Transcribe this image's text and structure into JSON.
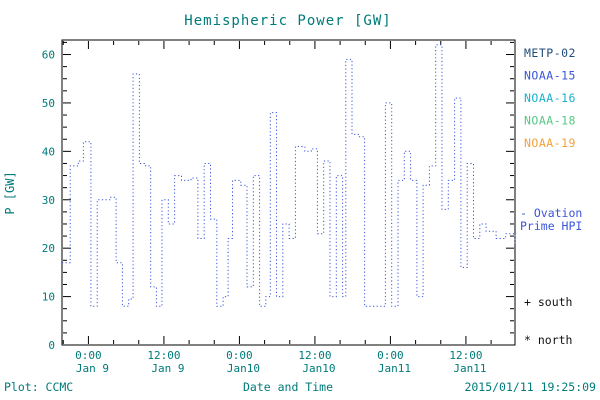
{
  "chart_data": {
    "type": "line",
    "subtype": "dotted-step",
    "title": "Hemispheric Power [GW]",
    "xlabel": "Date and Time",
    "ylabel": "P [GW]",
    "xlim_hours": [
      0,
      72
    ],
    "ylim": [
      0,
      63
    ],
    "y_ticks": [
      0,
      10,
      20,
      30,
      40,
      50,
      60
    ],
    "x_ticks": [
      {
        "t": 4.2,
        "time": "0:00",
        "date": "Jan 9"
      },
      {
        "t": 16.2,
        "time": "12:00",
        "date": "Jan 9"
      },
      {
        "t": 28.2,
        "time": "0:00",
        "date": "Jan10"
      },
      {
        "t": 40.2,
        "time": "12:00",
        "date": "Jan10"
      },
      {
        "t": 52.2,
        "time": "0:00",
        "date": "Jan11"
      },
      {
        "t": 64.2,
        "time": "12:00",
        "date": "Jan11"
      }
    ],
    "grid": false,
    "legend_position": "right",
    "legend": [
      {
        "label": "METP-02",
        "color": "#1f4e79"
      },
      {
        "label": "NOAA-15",
        "color": "#3a55d9"
      },
      {
        "label": "NOAA-16",
        "color": "#18b3cc"
      },
      {
        "label": "NOAA-18",
        "color": "#57c785"
      },
      {
        "label": "NOAA-19",
        "color": "#f2a13c"
      }
    ],
    "series": [
      {
        "name": "Ovation Prime HPI",
        "color": "#3a55d9",
        "style": "dotted-step",
        "points": [
          [
            0,
            17
          ],
          [
            1.3,
            37
          ],
          [
            2.6,
            38
          ],
          [
            3.4,
            42
          ],
          [
            4.6,
            8
          ],
          [
            5.6,
            30
          ],
          [
            7.6,
            30.5
          ],
          [
            8.6,
            17
          ],
          [
            9.6,
            8
          ],
          [
            10.6,
            9.5
          ],
          [
            11.3,
            56
          ],
          [
            12.3,
            37.5
          ],
          [
            13.3,
            37
          ],
          [
            14.1,
            12
          ],
          [
            15,
            8
          ],
          [
            15.9,
            30
          ],
          [
            16.9,
            25
          ],
          [
            17.9,
            35
          ],
          [
            19,
            34
          ],
          [
            20.5,
            34.5
          ],
          [
            21.6,
            22
          ],
          [
            22.6,
            37.5
          ],
          [
            23.6,
            26
          ],
          [
            24.6,
            8
          ],
          [
            25.6,
            10
          ],
          [
            26.4,
            22
          ],
          [
            27.1,
            34
          ],
          [
            28.4,
            33
          ],
          [
            29.4,
            12
          ],
          [
            30.4,
            35
          ],
          [
            31.4,
            8
          ],
          [
            32.4,
            10
          ],
          [
            33.1,
            48
          ],
          [
            34.1,
            10
          ],
          [
            35.1,
            25
          ],
          [
            36.1,
            22
          ],
          [
            37.1,
            41
          ],
          [
            38.6,
            40
          ],
          [
            39.6,
            40.5
          ],
          [
            40.6,
            23
          ],
          [
            41.6,
            38
          ],
          [
            42.6,
            10
          ],
          [
            43.6,
            35
          ],
          [
            44.6,
            10
          ],
          [
            45.1,
            59
          ],
          [
            46.1,
            43.5
          ],
          [
            47.1,
            43
          ],
          [
            48.1,
            8
          ],
          [
            50.1,
            8
          ],
          [
            51.4,
            50
          ],
          [
            52.4,
            8
          ],
          [
            53.4,
            34
          ],
          [
            54.4,
            40
          ],
          [
            55.4,
            34
          ],
          [
            56.4,
            10
          ],
          [
            57.4,
            33
          ],
          [
            58.4,
            37
          ],
          [
            59.4,
            62
          ],
          [
            60.4,
            28
          ],
          [
            61.4,
            34
          ],
          [
            62.4,
            51
          ],
          [
            63.4,
            16
          ],
          [
            64.4,
            37.5
          ],
          [
            65.4,
            22
          ],
          [
            66.4,
            25
          ],
          [
            67.4,
            23.5
          ],
          [
            69,
            22
          ],
          [
            70.5,
            23
          ],
          [
            72,
            21
          ]
        ]
      }
    ]
  },
  "annotations": {
    "ovation_line1": "- Ovation",
    "ovation_line2": "Prime HPI",
    "south_marker": "+ south",
    "north_marker": "* north"
  },
  "footer": {
    "credit": "Plot: CCMC",
    "timestamp": "2015/01/11 19:25:09"
  },
  "colors": {
    "text": "#007a7a",
    "frame": "#000000",
    "line": "#3a55d9",
    "background": "#ffffff"
  }
}
